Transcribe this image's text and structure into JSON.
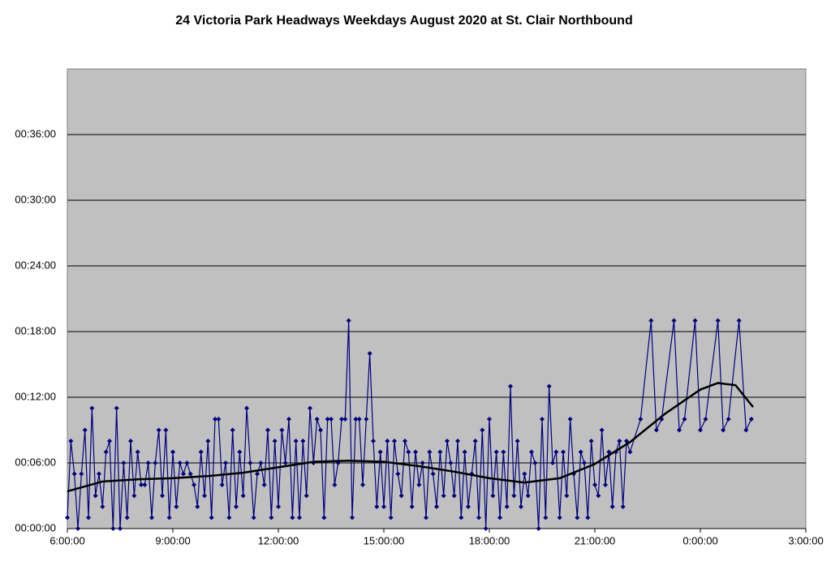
{
  "chart_data": {
    "type": "line",
    "title": "24 Victoria Park Headways Weekdays August 2020 at St. Clair Northbound",
    "xlim": [
      6,
      27
    ],
    "xticks": [
      {
        "value": 6,
        "label": "6:00:00"
      },
      {
        "value": 9,
        "label": "9:00:00"
      },
      {
        "value": 12,
        "label": "12:00:00"
      },
      {
        "value": 15,
        "label": "15:00:00"
      },
      {
        "value": 18,
        "label": "18:00:00"
      },
      {
        "value": 21,
        "label": "21:00:00"
      },
      {
        "value": 24,
        "label": "0:00:00"
      },
      {
        "value": 27,
        "label": "3:00:00"
      }
    ],
    "ylim": [
      0,
      42
    ],
    "yticks": [
      {
        "value": 0,
        "label": "00:00:00"
      },
      {
        "value": 6,
        "label": "00:06:00"
      },
      {
        "value": 12,
        "label": "00:12:00"
      },
      {
        "value": 18,
        "label": "00:18:00"
      },
      {
        "value": 24,
        "label": "00:24:00"
      },
      {
        "value": 30,
        "label": "00:30:00"
      },
      {
        "value": 36,
        "label": "00:36:00"
      }
    ],
    "grid": true,
    "series": [
      {
        "color": "#000080",
        "marker": "diamond",
        "x": [
          6,
          6.1,
          6.2,
          6.3,
          6.4,
          6.5,
          6.6,
          6.7,
          6.8,
          6.9,
          7,
          7.1,
          7.2,
          7.3,
          7.4,
          7.5,
          7.6,
          7.7,
          7.8,
          7.9,
          8,
          8.1,
          8.2,
          8.3,
          8.4,
          8.5,
          8.6,
          8.7,
          8.8,
          8.9,
          9,
          9.1,
          9.2,
          9.3,
          9.4,
          9.5,
          9.6,
          9.7,
          9.8,
          9.9,
          10,
          10.1,
          10.2,
          10.3,
          10.4,
          10.5,
          10.6,
          10.7,
          10.8,
          10.9,
          11,
          11.1,
          11.2,
          11.3,
          11.4,
          11.5,
          11.6,
          11.7,
          11.8,
          11.9,
          12,
          12.1,
          12.2,
          12.3,
          12.4,
          12.5,
          12.6,
          12.7,
          12.8,
          12.9,
          13,
          13.1,
          13.2,
          13.3,
          13.4,
          13.5,
          13.6,
          13.7,
          13.8,
          13.9,
          14,
          14.1,
          14.2,
          14.3,
          14.4,
          14.5,
          14.6,
          14.7,
          14.8,
          14.9,
          15,
          15.1,
          15.2,
          15.3,
          15.4,
          15.5,
          15.6,
          15.7,
          15.8,
          15.9,
          16,
          16.1,
          16.2,
          16.3,
          16.4,
          16.5,
          16.6,
          16.7,
          16.8,
          16.9,
          17,
          17.1,
          17.2,
          17.3,
          17.4,
          17.5,
          17.6,
          17.7,
          17.8,
          17.9,
          18,
          18.1,
          18.2,
          18.3,
          18.4,
          18.5,
          18.6,
          18.7,
          18.8,
          18.9,
          19,
          19.1,
          19.2,
          19.3,
          19.4,
          19.5,
          19.6,
          19.7,
          19.8,
          19.9,
          20,
          20.1,
          20.2,
          20.3,
          20.4,
          20.5,
          20.6,
          20.7,
          20.8,
          20.9,
          21,
          21.1,
          21.2,
          21.3,
          21.4,
          21.5,
          21.6,
          21.7,
          21.8,
          21.9,
          22,
          22.3,
          22.6,
          22.75,
          22.9,
          23.25,
          23.4,
          23.55,
          23.85,
          24,
          24.15,
          24.5,
          24.65,
          24.8,
          25.1,
          25.3,
          25.45
        ],
        "values": [
          1,
          8,
          5,
          0,
          5,
          9,
          1,
          11,
          3,
          5,
          2,
          7,
          8,
          0,
          11,
          0,
          6,
          1,
          8,
          3,
          7,
          4,
          4,
          6,
          1,
          6,
          9,
          3,
          9,
          1,
          7,
          2,
          6,
          5,
          6,
          5,
          4,
          2,
          7,
          3,
          8,
          1,
          10,
          10,
          4,
          6,
          1,
          9,
          2,
          7,
          3,
          11,
          6,
          1,
          5,
          6,
          4,
          9,
          1,
          8,
          2,
          9,
          6,
          10,
          1,
          8,
          1,
          8,
          3,
          11,
          6,
          10,
          9,
          1,
          10,
          10,
          4,
          6,
          10,
          10,
          19,
          1,
          10,
          10,
          4,
          10,
          16,
          8,
          2,
          7,
          2,
          8,
          1,
          8,
          5,
          3,
          8,
          7,
          2,
          7,
          4,
          6,
          1,
          7,
          5,
          2,
          7,
          3,
          8,
          6,
          3,
          8,
          1,
          7,
          2,
          5,
          8,
          1,
          9,
          0,
          10,
          3,
          7,
          1,
          7,
          2,
          13,
          3,
          8,
          2,
          5,
          3,
          7,
          6,
          0,
          10,
          1,
          13,
          6,
          7,
          1,
          7,
          3,
          10,
          5,
          1,
          7,
          6,
          1,
          8,
          4,
          3,
          9,
          4,
          7,
          2,
          7,
          8,
          2,
          8,
          7,
          10,
          19,
          9,
          10,
          19,
          9,
          10,
          19,
          9,
          10,
          19,
          9,
          10,
          19,
          9,
          10
        ]
      },
      {
        "color": "#000000",
        "x": [
          6,
          7,
          8,
          9,
          10,
          11,
          12,
          13,
          14,
          15,
          16,
          17,
          18,
          19,
          20,
          21,
          22,
          23,
          24,
          24.5,
          25,
          25.5
        ],
        "values": [
          3.4,
          4.3,
          4.5,
          4.6,
          4.8,
          5.1,
          5.6,
          6.1,
          6.2,
          6.1,
          5.7,
          5.2,
          4.6,
          4.2,
          4.6,
          5.9,
          7.9,
          10.5,
          12.7,
          13.3,
          13.1,
          11.1
        ]
      }
    ]
  }
}
